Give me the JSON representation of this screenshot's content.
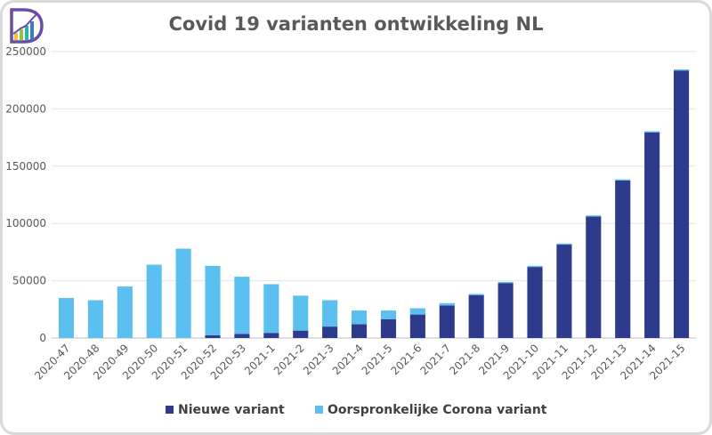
{
  "title": "Covid 19 varianten ontwikkeling NL",
  "logo": {
    "icon": "bar-chart-logo-icon",
    "letter": "D"
  },
  "chart_data": {
    "type": "bar",
    "stacked": true,
    "title": "Covid 19 varianten ontwikkeling NL",
    "xlabel": "",
    "ylabel": "",
    "ylim": [
      0,
      250000
    ],
    "yticks": [
      0,
      50000,
      100000,
      150000,
      200000,
      250000
    ],
    "yticklabels": [
      "0",
      "50000",
      "100000",
      "150000",
      "200000",
      "250000"
    ],
    "grid": true,
    "legend": "bottom",
    "categories": [
      "2020-47",
      "2020-48",
      "2020-49",
      "2020-50",
      "2020-51",
      "2020-52",
      "2020-53",
      "2021-1",
      "2021-2",
      "2021-3",
      "2021-4",
      "2021-5",
      "2021-6",
      "2021-7",
      "2021-8",
      "2021-9",
      "2021-10",
      "2021-11",
      "2021-12",
      "2021-13",
      "2021-14",
      "2021-15"
    ],
    "series": [
      {
        "name": "Nieuwe variant",
        "color": "#2e3b8c",
        "values": [
          0,
          0,
          0,
          0,
          0,
          2500,
          3500,
          4500,
          6500,
          10000,
          12000,
          16500,
          20500,
          28500,
          37500,
          48000,
          62000,
          81500,
          106000,
          137500,
          179500,
          233500
        ]
      },
      {
        "name": "Oorspronkelijke Corona variant",
        "color": "#5bc0f0",
        "values": [
          35000,
          33000,
          45000,
          64000,
          78000,
          60500,
          50000,
          42500,
          30500,
          23000,
          12000,
          7500,
          5500,
          2000,
          1000,
          1000,
          1000,
          1000,
          1000,
          1000,
          1000,
          1000
        ]
      }
    ]
  }
}
